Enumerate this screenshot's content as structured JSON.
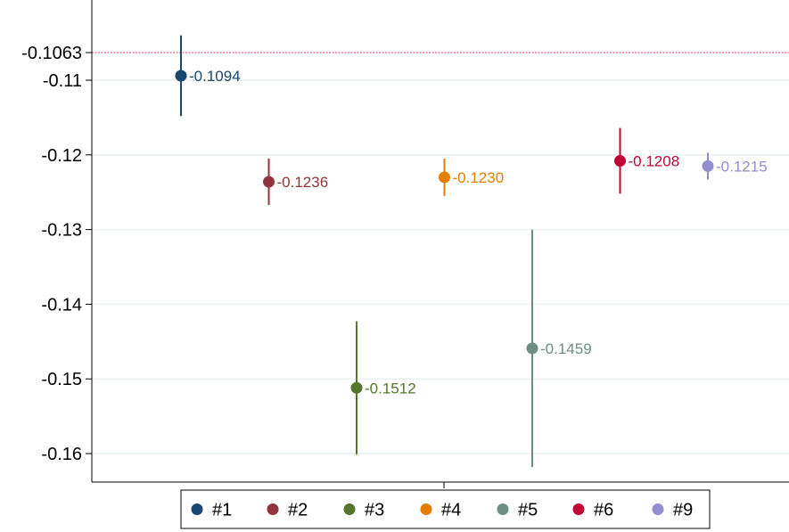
{
  "chart_data": {
    "type": "scatter",
    "title": "",
    "xlabel": "",
    "ylabel": "",
    "ylim": [
      -0.1625,
      -0.1033
    ],
    "y_ticks": [
      -0.11,
      -0.12,
      -0.13,
      -0.14,
      -0.15,
      -0.16
    ],
    "y_tick_labels": [
      "-0.11",
      "-0.12",
      "-0.13",
      "-0.14",
      "-0.15",
      "-0.16"
    ],
    "reference_line": {
      "value": -0.1063,
      "label": "-0.1063",
      "color": "#e0115f",
      "style": "dashed"
    },
    "grid": true,
    "legend_position": "bottom",
    "series": [
      {
        "name": "#1",
        "x": 1,
        "value": -0.1094,
        "ci_low": -0.1148,
        "ci_high": -0.104,
        "label": "-0.1094",
        "color": "#1a476f"
      },
      {
        "name": "#2",
        "x": 2,
        "value": -0.1236,
        "ci_low": -0.1267,
        "ci_high": -0.1205,
        "label": "-0.1236",
        "color": "#90353b"
      },
      {
        "name": "#3",
        "x": 3,
        "value": -0.1512,
        "ci_low": -0.1601,
        "ci_high": -0.1423,
        "label": "-0.1512",
        "color": "#55752f"
      },
      {
        "name": "#4",
        "x": 4,
        "value": -0.123,
        "ci_low": -0.1255,
        "ci_high": -0.1205,
        "label": "-0.1230",
        "color": "#e37e00"
      },
      {
        "name": "#5",
        "x": 5,
        "value": -0.1459,
        "ci_low": -0.1618,
        "ci_high": -0.13,
        "label": "-0.1459",
        "color": "#6e8e84"
      },
      {
        "name": "#6",
        "x": 6,
        "value": -0.1208,
        "ci_low": -0.1252,
        "ci_high": -0.1164,
        "label": "-0.1208",
        "color": "#c10534"
      },
      {
        "name": "#9",
        "x": 7,
        "value": -0.1215,
        "ci_low": -0.1233,
        "ci_high": -0.1197,
        "label": "-0.1215",
        "color": "#938dd2"
      }
    ]
  }
}
